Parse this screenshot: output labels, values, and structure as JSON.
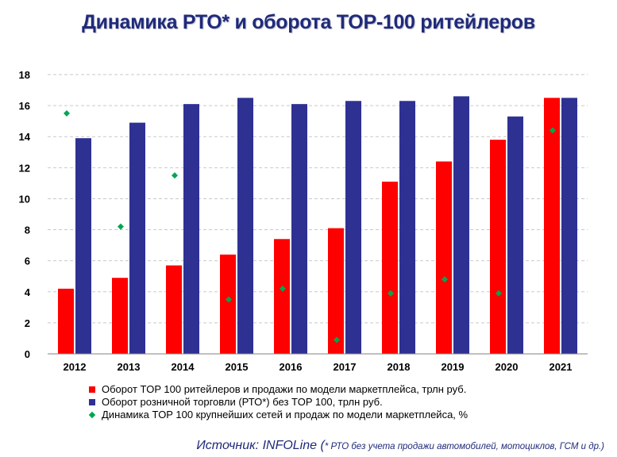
{
  "title": "Динамика РТО* и оборота TOP-100 ритейлеров",
  "chart_data": {
    "type": "bar",
    "categories": [
      "2012",
      "2013",
      "2014",
      "2015",
      "2016",
      "2017",
      "2018",
      "2019",
      "2020",
      "2021"
    ],
    "ylim": [
      0,
      18
    ],
    "yticks": [
      "0",
      "2",
      "4",
      "6",
      "8",
      "10",
      "12",
      "14",
      "16",
      "18"
    ],
    "grid": true,
    "legend_position": "bottom",
    "series": [
      {
        "name": "Оборот TOP 100 ритейлеров и продажи по модели маркетплейса, трлн руб.",
        "type": "bar",
        "color": "#ff0000",
        "values": [
          4.2,
          4.9,
          5.7,
          6.4,
          7.4,
          8.1,
          11.1,
          12.4,
          13.8,
          16.5
        ]
      },
      {
        "name": "Оборот розничной торговли (РТО*) без TOP 100, трлн руб.",
        "type": "bar",
        "color": "#2e3192",
        "values": [
          13.9,
          14.9,
          16.1,
          16.5,
          16.1,
          16.3,
          16.3,
          16.6,
          15.3,
          16.5
        ]
      },
      {
        "name": "Динамика TOP 100 крупнейших сетей и продаж по модели маркетплейса, %",
        "type": "scatter",
        "color": "#00a651",
        "values": [
          15.5,
          8.2,
          11.5,
          3.5,
          4.2,
          0.9,
          3.9,
          4.8,
          3.9,
          14.4
        ]
      }
    ]
  },
  "source": {
    "main": "Источник: INFOLine (",
    "note": "* РТО без учета продажи автомобилей, мотоциклов, ГСМ и др.)"
  }
}
